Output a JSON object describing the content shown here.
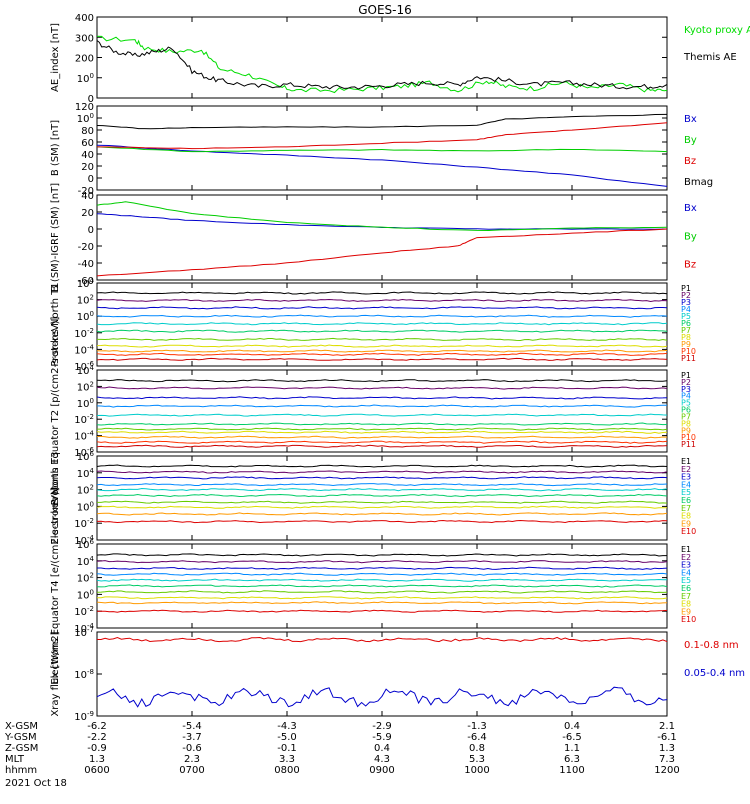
{
  "title": "GOES-16",
  "date_label": "2021 Oct 18",
  "time_axis": {
    "ticks": [
      "0600",
      "0700",
      "0800",
      "0900",
      "1000",
      "1100",
      "1200"
    ],
    "rows": [
      {
        "label": "X-GSM",
        "values": [
          "-6.2",
          "-5.4",
          "-4.3",
          "-2.9",
          "-1.3",
          "0.4",
          "2.1"
        ]
      },
      {
        "label": "Y-GSM",
        "values": [
          "-2.2",
          "-3.7",
          "-5.0",
          "-5.9",
          "-6.4",
          "-6.5",
          "-6.1"
        ]
      },
      {
        "label": "Z-GSM",
        "values": [
          "-0.9",
          "-0.6",
          "-0.1",
          "0.4",
          "0.8",
          "1.1",
          "1.3"
        ]
      },
      {
        "label": "MLT",
        "values": [
          "1.3",
          "2.3",
          "3.3",
          "4.3",
          "5.3",
          "6.3",
          "7.3"
        ]
      },
      {
        "label": "hhmm",
        "values": [
          "0600",
          "0700",
          "0800",
          "0900",
          "1000",
          "1100",
          "1200"
        ]
      }
    ]
  },
  "chart_data": [
    {
      "type": "line",
      "ylabel": "AE_index [nT]",
      "scale": "linear",
      "ylim": [
        0,
        420
      ],
      "yticks": [
        "0",
        "100",
        "200",
        "300",
        "400"
      ],
      "x_range": [
        6.0,
        12.0
      ],
      "series": [
        {
          "name": "Kyoto proxy AE",
          "color": "#00dd00",
          "x": [
            6.0,
            6.4,
            6.5,
            6.8,
            7.1,
            7.3,
            7.6,
            7.9,
            8.1,
            8.5,
            8.9,
            9.2,
            9.5,
            9.8,
            10.1,
            10.3,
            10.6,
            10.9,
            11.2,
            11.5,
            11.8,
            12.0
          ],
          "y": [
            310,
            300,
            260,
            240,
            250,
            150,
            120,
            60,
            40,
            40,
            50,
            60,
            80,
            40,
            90,
            60,
            50,
            80,
            50,
            70,
            40,
            40
          ]
        },
        {
          "name": "Themis AE",
          "color": "#000000",
          "x": [
            6.0,
            6.2,
            6.4,
            6.6,
            6.8,
            7.0,
            7.2,
            7.4,
            7.7,
            8.0,
            8.3,
            8.6,
            8.9,
            9.2,
            9.5,
            9.8,
            10.0,
            10.3,
            10.6,
            10.9,
            11.2,
            11.5,
            11.8,
            12.0
          ],
          "y": [
            290,
            240,
            220,
            240,
            260,
            140,
            100,
            80,
            60,
            70,
            60,
            55,
            60,
            70,
            80,
            70,
            110,
            90,
            70,
            80,
            70,
            60,
            60,
            70
          ]
        }
      ]
    },
    {
      "type": "line",
      "ylabel": "B (SM) [nT]",
      "scale": "linear",
      "ylim": [
        -20,
        120
      ],
      "yticks": [
        "-20",
        "0",
        "20",
        "40",
        "60",
        "80",
        "100",
        "120"
      ],
      "x_range": [
        6.0,
        12.0
      ],
      "series": [
        {
          "name": "Bx",
          "color": "#0000cc",
          "x": [
            6.0,
            7.0,
            8.0,
            9.0,
            10.0,
            11.0,
            12.0
          ],
          "y": [
            55,
            45,
            38,
            30,
            18,
            5,
            -14
          ]
        },
        {
          "name": "By",
          "color": "#00cc00",
          "x": [
            6.0,
            7.0,
            8.0,
            9.0,
            10.0,
            11.0,
            12.0
          ],
          "y": [
            52,
            44,
            46,
            47,
            45,
            48,
            44
          ]
        },
        {
          "name": "Bz",
          "color": "#dd0000",
          "x": [
            6.0,
            7.0,
            8.0,
            9.0,
            10.0,
            10.3,
            11.0,
            12.0
          ],
          "y": [
            52,
            49,
            52,
            58,
            64,
            72,
            80,
            92
          ]
        },
        {
          "name": "Bmag",
          "color": "#000000",
          "x": [
            6.0,
            6.5,
            7.0,
            8.0,
            9.0,
            10.0,
            10.3,
            11.0,
            12.0
          ],
          "y": [
            88,
            82,
            84,
            85,
            85,
            88,
            98,
            102,
            106
          ]
        }
      ]
    },
    {
      "type": "line",
      "ylabel": "B (SM)-IGRF (SM) [nT]",
      "scale": "linear",
      "ylim": [
        -60,
        40
      ],
      "yticks": [
        "-60",
        "-40",
        "-20",
        "0",
        "20",
        "40"
      ],
      "x_range": [
        6.0,
        12.0
      ],
      "series": [
        {
          "name": "Bx",
          "color": "#0000cc",
          "x": [
            6.0,
            6.4,
            7.0,
            8.0,
            9.0,
            10.0,
            11.0,
            12.0
          ],
          "y": [
            18,
            15,
            10,
            5,
            2,
            0,
            0,
            0
          ]
        },
        {
          "name": "By",
          "color": "#00cc00",
          "x": [
            6.0,
            6.3,
            7.0,
            8.0,
            9.0,
            10.0,
            11.0,
            12.0
          ],
          "y": [
            28,
            32,
            18,
            8,
            2,
            -2,
            1,
            2
          ]
        },
        {
          "name": "Bz",
          "color": "#dd0000",
          "x": [
            6.0,
            7.0,
            8.0,
            9.0,
            9.8,
            10.0,
            11.0,
            12.0
          ],
          "y": [
            -55,
            -48,
            -40,
            -28,
            -20,
            -10,
            -5,
            0
          ]
        }
      ]
    },
    {
      "type": "line",
      "ylabel": "Protons North T1",
      "scale": "log",
      "ylim_exp": [
        -6,
        4
      ],
      "yticks": [
        "10-6",
        "10-4",
        "10-2",
        "100",
        "102",
        "104"
      ],
      "x_range": [
        6.0,
        12.0
      ],
      "series": [
        {
          "name": "P1",
          "color": "#000000",
          "level": 2.8
        },
        {
          "name": "P2",
          "color": "#660066",
          "level": 1.9
        },
        {
          "name": "P3",
          "color": "#0000cc",
          "level": 1.0
        },
        {
          "name": "P4",
          "color": "#0088ff",
          "level": 0.0
        },
        {
          "name": "P5",
          "color": "#00cccc",
          "level": -0.9
        },
        {
          "name": "P6",
          "color": "#00cc66",
          "level": -1.8
        },
        {
          "name": "P7",
          "color": "#66cc00",
          "level": -2.8
        },
        {
          "name": "P8",
          "color": "#dddd00",
          "level": -3.6
        },
        {
          "name": "P9",
          "color": "#ff9900",
          "level": -4.2
        },
        {
          "name": "P10",
          "color": "#ff3300",
          "level": -4.6
        },
        {
          "name": "P11",
          "color": "#cc0000",
          "level": -5.2
        }
      ]
    },
    {
      "type": "line",
      "ylabel": "Protons Equator T2 [p/(cm2-s-sr-keV)]",
      "scale": "log",
      "ylim_exp": [
        -6,
        4
      ],
      "yticks": [
        "10-6",
        "10-4",
        "10-2",
        "100",
        "102",
        "104"
      ],
      "x_range": [
        6.0,
        12.0
      ],
      "series": [
        {
          "name": "P1",
          "color": "#000000",
          "level": 2.7
        },
        {
          "name": "P2",
          "color": "#660066",
          "level": 1.8
        },
        {
          "name": "P3",
          "color": "#0000cc",
          "level": 0.6
        },
        {
          "name": "P4",
          "color": "#0088ff",
          "level": -0.4
        },
        {
          "name": "P5",
          "color": "#00cccc",
          "level": -1.5
        },
        {
          "name": "P6",
          "color": "#00cc66",
          "level": -2.6
        },
        {
          "name": "P7",
          "color": "#66cc00",
          "level": -3.2
        },
        {
          "name": "P8",
          "color": "#dddd00",
          "level": -3.6
        },
        {
          "name": "P9",
          "color": "#ff9900",
          "level": -4.2
        },
        {
          "name": "P10",
          "color": "#ff3300",
          "level": -4.8
        },
        {
          "name": "P11",
          "color": "#cc0000",
          "level": -5.3
        }
      ]
    },
    {
      "type": "line",
      "ylabel": "Electrons North T3",
      "scale": "log",
      "ylim_exp": [
        -4,
        6
      ],
      "yticks": [
        "10-4",
        "10-2",
        "100",
        "102",
        "104",
        "106"
      ],
      "x_range": [
        6.0,
        12.0
      ],
      "series": [
        {
          "name": "E1",
          "color": "#000000",
          "level": 4.8
        },
        {
          "name": "E2",
          "color": "#660066",
          "level": 4.1
        },
        {
          "name": "E3",
          "color": "#0000cc",
          "level": 3.4
        },
        {
          "name": "E4",
          "color": "#0088ff",
          "level": 2.6
        },
        {
          "name": "E5",
          "color": "#00cccc",
          "level": 2.0
        },
        {
          "name": "E6",
          "color": "#00cc66",
          "level": 1.3
        },
        {
          "name": "E7",
          "color": "#66cc00",
          "level": 0.5
        },
        {
          "name": "E8",
          "color": "#dddd00",
          "level": -0.1
        },
        {
          "name": "E9",
          "color": "#ff9900",
          "level": -0.9
        },
        {
          "name": "E10",
          "color": "#dd0000",
          "level": -1.8
        }
      ]
    },
    {
      "type": "line",
      "ylabel": "Electrons Equator T4 [e/(cm2-s-sr-keV)]",
      "scale": "log",
      "ylim_exp": [
        -4,
        6
      ],
      "yticks": [
        "10-4",
        "10-2",
        "100",
        "102",
        "104",
        "106"
      ],
      "x_range": [
        6.0,
        12.0
      ],
      "series": [
        {
          "name": "E1",
          "color": "#000000",
          "level": 4.7
        },
        {
          "name": "E2",
          "color": "#660066",
          "level": 3.9
        },
        {
          "name": "E3",
          "color": "#0000cc",
          "level": 3.1
        },
        {
          "name": "E4",
          "color": "#0088ff",
          "level": 2.4
        },
        {
          "name": "E5",
          "color": "#00cccc",
          "level": 1.7
        },
        {
          "name": "E6",
          "color": "#00cc66",
          "level": 1.0
        },
        {
          "name": "E7",
          "color": "#66cc00",
          "level": 0.3
        },
        {
          "name": "E8",
          "color": "#dddd00",
          "level": -0.4
        },
        {
          "name": "E9",
          "color": "#ff9900",
          "level": -1.0
        },
        {
          "name": "E10",
          "color": "#dd0000",
          "level": -2.0
        }
      ]
    },
    {
      "type": "line",
      "ylabel": "Xray flux [W/m2]",
      "scale": "log",
      "ylim_exp": [
        -9,
        -7
      ],
      "yticks": [
        "10-9",
        "10-8",
        "10-7"
      ],
      "x_range": [
        6.0,
        12.0
      ],
      "series": [
        {
          "name": "0.1-0.8 nm",
          "color": "#dd0000",
          "level": -7.18
        },
        {
          "name": "0.05-0.4 nm",
          "color": "#0000cc",
          "level": -8.55
        }
      ]
    }
  ],
  "colors": {
    "axis": "#000000",
    "background": "#ffffff"
  }
}
